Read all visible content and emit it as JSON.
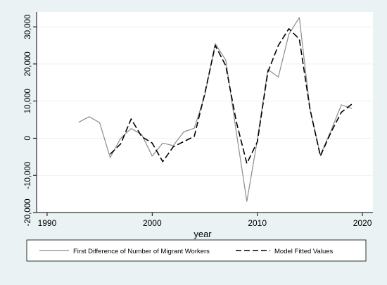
{
  "chart_data": {
    "type": "line",
    "title": "",
    "xlabel": "year",
    "ylabel": "",
    "xlim": [
      1989,
      2021
    ],
    "ylim": [
      -20000,
      34000
    ],
    "x_ticks": [
      1990,
      2000,
      2010,
      2020
    ],
    "x_tick_labels": [
      "1990",
      "2000",
      "2010",
      "2020"
    ],
    "y_ticks": [
      -20000,
      -10000,
      0,
      10000,
      20000,
      30000
    ],
    "y_tick_labels": [
      "-20,000",
      "-10,000",
      "0",
      "10,000",
      "20,000",
      "30,000"
    ],
    "grid": "horizontal",
    "legend_position": "bottom",
    "colors": {
      "page_bg": "#eaf2f3",
      "plot_bg": "#ffffff",
      "grid": "#eaf2f3",
      "series1": "#8c8c8c",
      "series2": "#000000"
    },
    "series": [
      {
        "name": "First Difference of Number of Migrant Workers",
        "style": "solid",
        "x": [
          1993,
          1994,
          1995,
          1996,
          1997,
          1998,
          1999,
          2000,
          2001,
          2002,
          2003,
          2004,
          2005,
          2006,
          2007,
          2008,
          2009,
          2010,
          2011,
          2012,
          2013,
          2014,
          2015,
          2016,
          2017,
          2018,
          2019
        ],
        "y": [
          4300,
          5800,
          4200,
          -5200,
          0,
          2600,
          1000,
          -4800,
          -1300,
          -2000,
          1700,
          2700,
          11500,
          25500,
          21000,
          1700,
          -17000,
          -500,
          18500,
          16500,
          28000,
          32500,
          8000,
          -4500,
          2000,
          9000,
          8000
        ]
      },
      {
        "name": "Model Fitted Values",
        "style": "dashed",
        "x": [
          1996,
          1997,
          1998,
          1999,
          2000,
          2001,
          2002,
          2003,
          2004,
          2005,
          2006,
          2007,
          2008,
          2009,
          2010,
          2011,
          2012,
          2013,
          2014,
          2015,
          2016,
          2017,
          2018,
          2019
        ],
        "y": [
          -4300,
          -1500,
          5200,
          400,
          -1300,
          -6300,
          -2300,
          -900,
          500,
          12000,
          25000,
          19500,
          4500,
          -6800,
          -1000,
          17800,
          25000,
          29500,
          26700,
          8000,
          -4800,
          1600,
          7000,
          9200
        ]
      }
    ]
  }
}
